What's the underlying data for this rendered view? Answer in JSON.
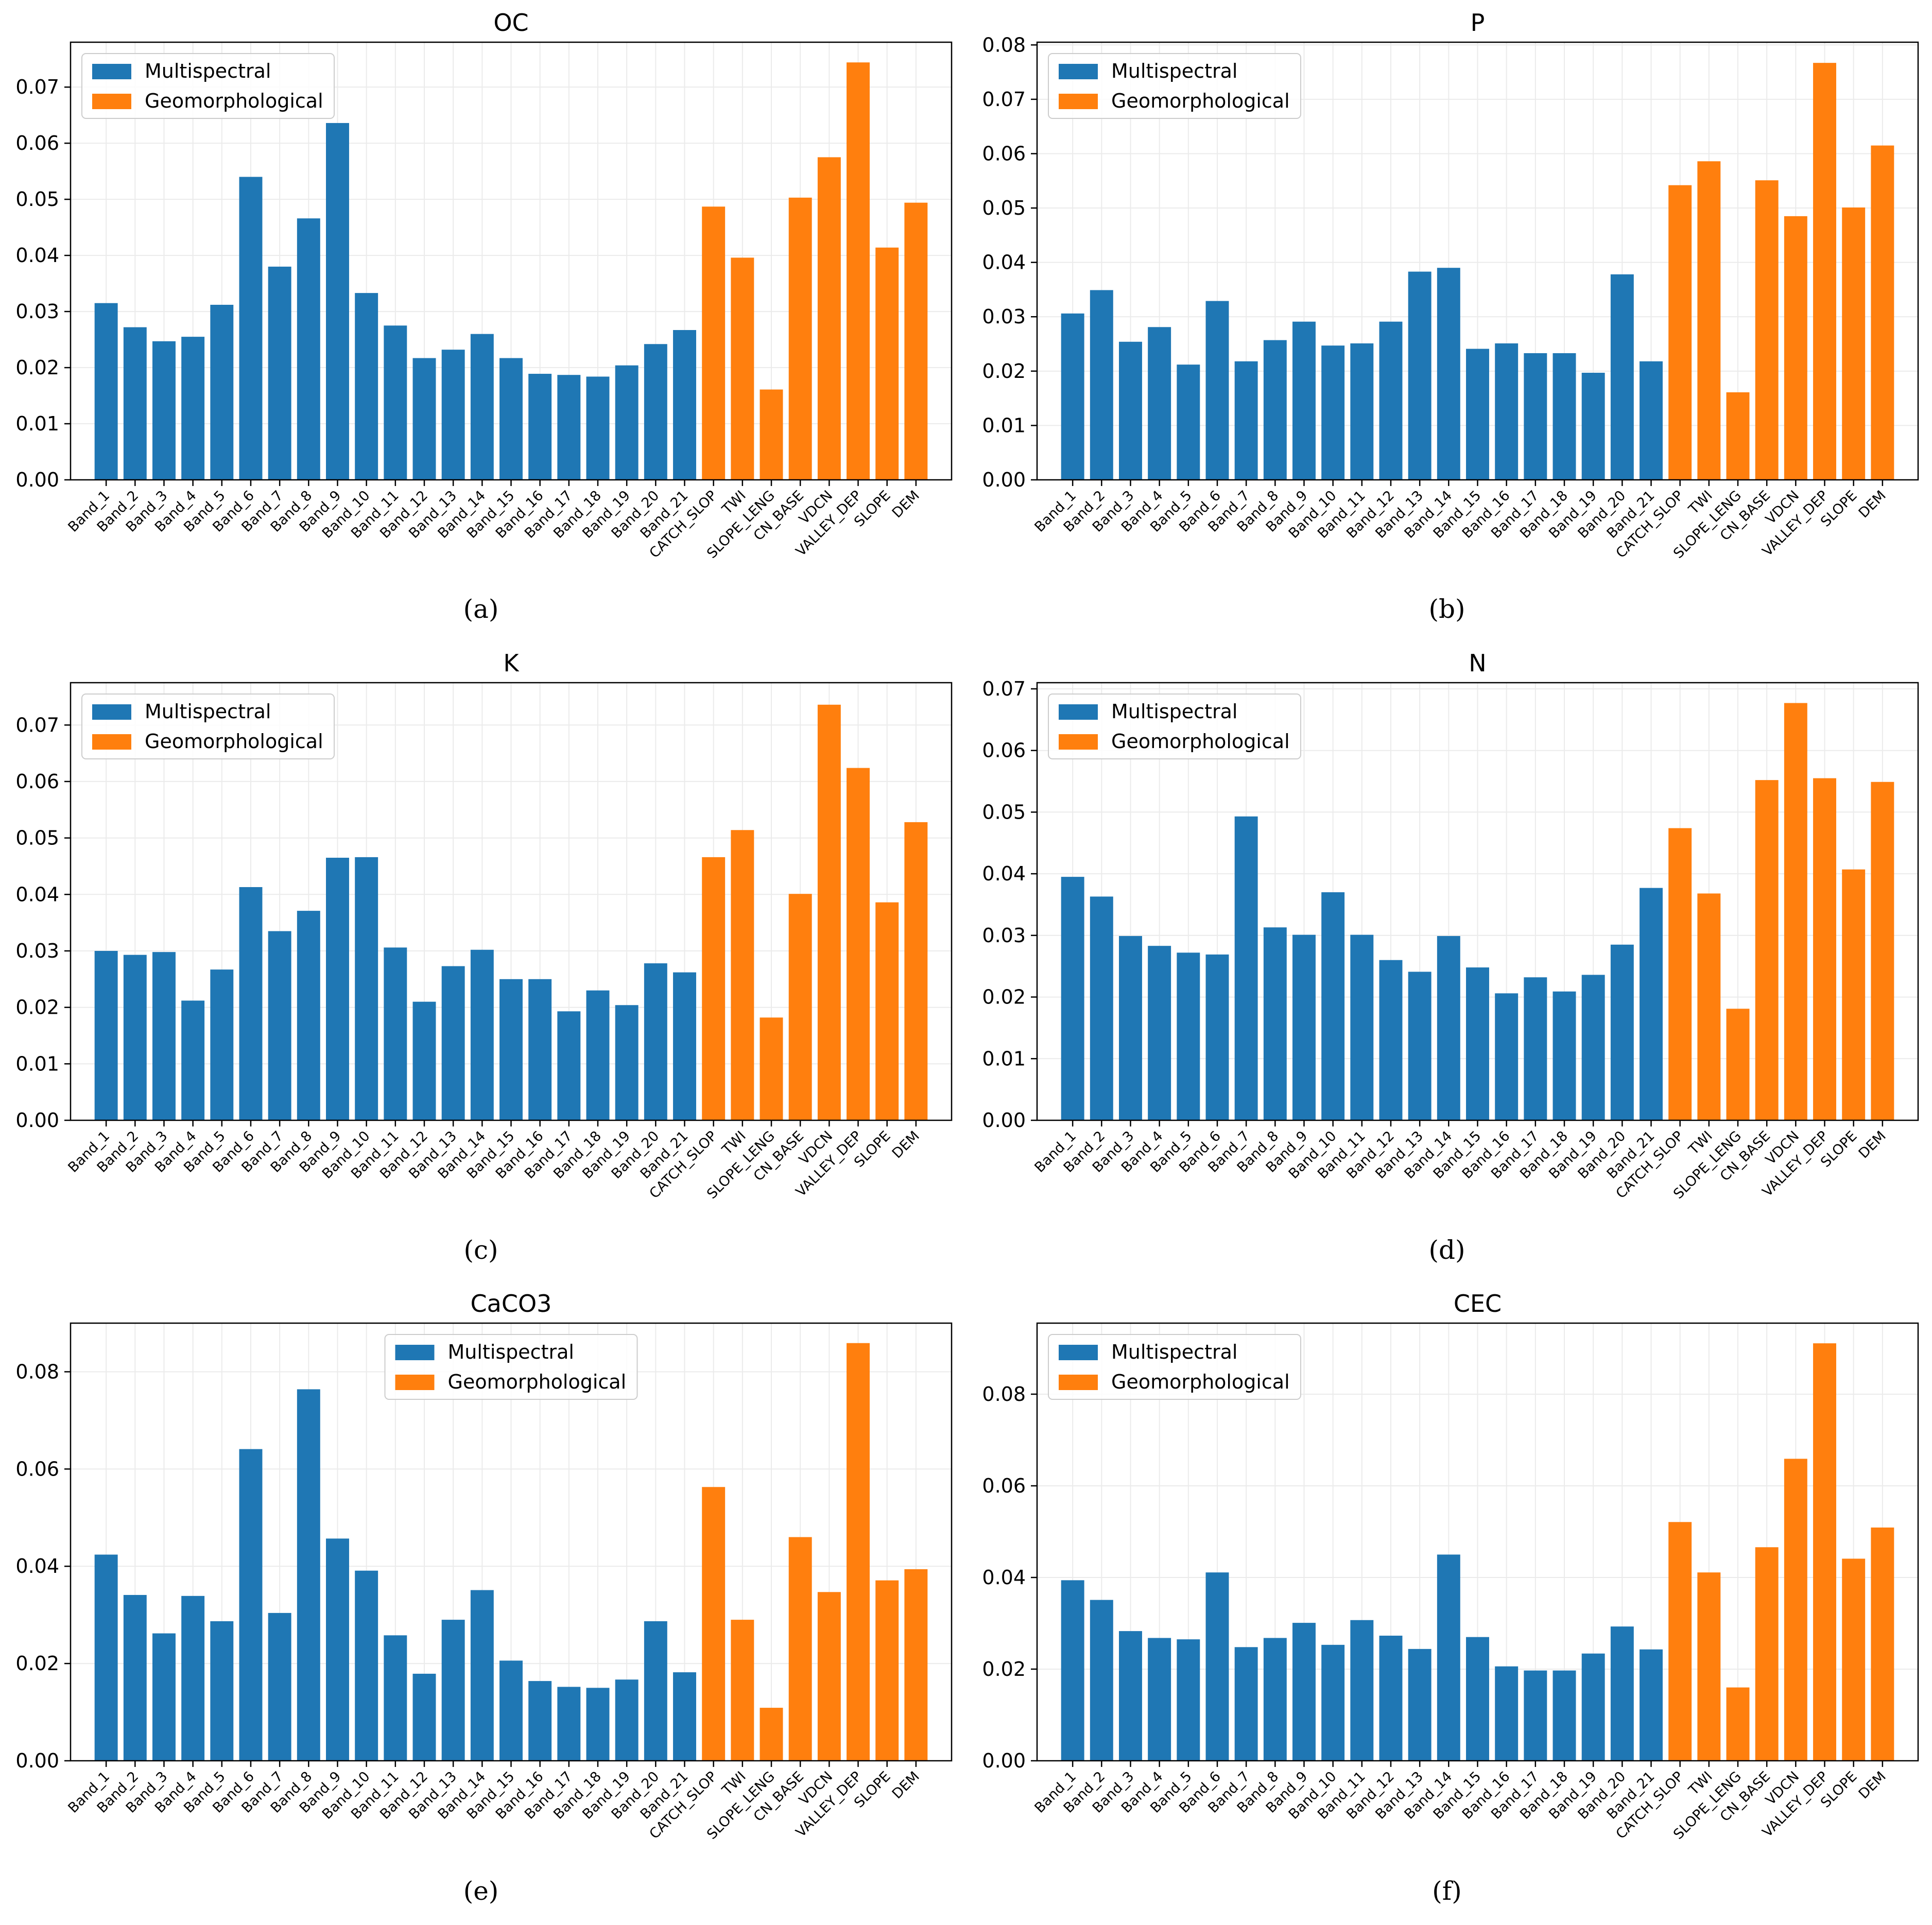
{
  "categories": [
    "Band_1",
    "Band_2",
    "Band_3",
    "Band_4",
    "Band_5",
    "Band_6",
    "Band_7",
    "Band_8",
    "Band_9",
    "Band_10",
    "Band_11",
    "Band_12",
    "Band_13",
    "Band_14",
    "Band_15",
    "Band_16",
    "Band_17",
    "Band_18",
    "Band_19",
    "Band_20",
    "Band_21",
    "CATCH_SLOP",
    "TWI",
    "SLOPE_LENG",
    "CN_BASE",
    "VDCN",
    "VALLEY_DEP",
    "SLOPE",
    "DEM"
  ],
  "colors": {
    "multispectral": "#1f77b4",
    "geomorphological": "#ff7f0e"
  },
  "chart_data": [
    {
      "type": "bar",
      "title": "OC",
      "caption": "(a)",
      "legend": [
        "Multispectral",
        "Geomorphological"
      ],
      "legend_position": "top-left",
      "ylim": [
        0,
        0.078
      ],
      "yticks": [
        0.0,
        0.01,
        0.02,
        0.03,
        0.04,
        0.05,
        0.06,
        0.07
      ],
      "ytick_labels": [
        "0.00",
        "0.01",
        "0.02",
        "0.03",
        "0.04",
        "0.05",
        "0.06",
        "0.07"
      ],
      "grid": true,
      "series": [
        {
          "name": "Multispectral",
          "values": [
            0.0315,
            0.0272,
            0.0247,
            0.0255,
            0.0312,
            0.054,
            0.038,
            0.0466,
            0.0636,
            0.0333,
            0.0275,
            0.0217,
            0.0232,
            0.026,
            0.0217,
            0.0189,
            0.0187,
            0.0184,
            0.0204,
            0.0242,
            0.0267
          ]
        },
        {
          "name": "Geomorphological",
          "values": [
            0.0487,
            0.0396,
            0.0161,
            0.0503,
            0.0575,
            0.0744,
            0.0414,
            0.0494
          ]
        }
      ]
    },
    {
      "type": "bar",
      "title": "P",
      "caption": "(b)",
      "legend": [
        "Multispectral",
        "Geomorphological"
      ],
      "legend_position": "top-left",
      "ylim": [
        0,
        0.0805
      ],
      "yticks": [
        0.0,
        0.01,
        0.02,
        0.03,
        0.04,
        0.05,
        0.06,
        0.07,
        0.08
      ],
      "ytick_labels": [
        "0.00",
        "0.01",
        "0.02",
        "0.03",
        "0.04",
        "0.05",
        "0.06",
        "0.07",
        "0.08"
      ],
      "grid": true,
      "series": [
        {
          "name": "Multispectral",
          "values": [
            0.0306,
            0.0349,
            0.0254,
            0.0281,
            0.0212,
            0.0329,
            0.0218,
            0.0257,
            0.0291,
            0.0247,
            0.0251,
            0.0291,
            0.0383,
            0.039,
            0.0241,
            0.0251,
            0.0233,
            0.0233,
            0.0197,
            0.0378,
            0.0218
          ]
        },
        {
          "name": "Geomorphological",
          "values": [
            0.0542,
            0.0586,
            0.0161,
            0.0551,
            0.0485,
            0.0767,
            0.0501,
            0.0615
          ]
        }
      ]
    },
    {
      "type": "bar",
      "title": "K",
      "caption": "(c)",
      "legend": [
        "Multispectral",
        "Geomorphological"
      ],
      "legend_position": "top-left",
      "ylim": [
        0,
        0.0775
      ],
      "yticks": [
        0.0,
        0.01,
        0.02,
        0.03,
        0.04,
        0.05,
        0.06,
        0.07
      ],
      "ytick_labels": [
        "0.00",
        "0.01",
        "0.02",
        "0.03",
        "0.04",
        "0.05",
        "0.06",
        "0.07"
      ],
      "grid": true,
      "series": [
        {
          "name": "Multispectral",
          "values": [
            0.03,
            0.0293,
            0.0298,
            0.0212,
            0.0267,
            0.0413,
            0.0335,
            0.0371,
            0.0465,
            0.0466,
            0.0306,
            0.021,
            0.0273,
            0.0302,
            0.025,
            0.025,
            0.0193,
            0.023,
            0.0204,
            0.0278,
            0.0262
          ]
        },
        {
          "name": "Geomorphological",
          "values": [
            0.0466,
            0.0514,
            0.0182,
            0.0401,
            0.0736,
            0.0624,
            0.0386,
            0.0528
          ]
        }
      ]
    },
    {
      "type": "bar",
      "title": "N",
      "caption": "(d)",
      "legend": [
        "Multispectral",
        "Geomorphological"
      ],
      "legend_position": "top-left",
      "ylim": [
        0,
        0.071
      ],
      "yticks": [
        0.0,
        0.01,
        0.02,
        0.03,
        0.04,
        0.05,
        0.06,
        0.07
      ],
      "ytick_labels": [
        "0.00",
        "0.01",
        "0.02",
        "0.03",
        "0.04",
        "0.05",
        "0.06",
        "0.07"
      ],
      "grid": true,
      "series": [
        {
          "name": "Multispectral",
          "values": [
            0.0395,
            0.0363,
            0.0299,
            0.0283,
            0.0272,
            0.0269,
            0.0493,
            0.0313,
            0.0301,
            0.037,
            0.0301,
            0.026,
            0.0241,
            0.0299,
            0.0248,
            0.0206,
            0.0232,
            0.0209,
            0.0236,
            0.0285,
            0.0377
          ]
        },
        {
          "name": "Geomorphological",
          "values": [
            0.0474,
            0.0368,
            0.0181,
            0.0552,
            0.0677,
            0.0555,
            0.0407,
            0.0549
          ]
        }
      ]
    },
    {
      "type": "bar",
      "title": "CaCO3",
      "caption": "(e)",
      "legend": [
        "Multispectral",
        "Geomorphological"
      ],
      "legend_position": "top-center",
      "ylim": [
        0,
        0.09
      ],
      "yticks": [
        0.0,
        0.02,
        0.04,
        0.06,
        0.08
      ],
      "ytick_labels": [
        "0.00",
        "0.02",
        "0.04",
        "0.06",
        "0.08"
      ],
      "grid": true,
      "series": [
        {
          "name": "Multispectral",
          "values": [
            0.0424,
            0.0341,
            0.0262,
            0.0339,
            0.0287,
            0.0641,
            0.0304,
            0.0764,
            0.0457,
            0.0391,
            0.0258,
            0.0179,
            0.029,
            0.0351,
            0.0206,
            0.0164,
            0.0152,
            0.015,
            0.0167,
            0.0287,
            0.0182
          ]
        },
        {
          "name": "Geomorphological",
          "values": [
            0.0563,
            0.029,
            0.0109,
            0.046,
            0.0347,
            0.0859,
            0.0371,
            0.0394
          ]
        }
      ]
    },
    {
      "type": "bar",
      "title": "CEC",
      "caption": "(f)",
      "legend": [
        "Multispectral",
        "Geomorphological"
      ],
      "legend_position": "top-left",
      "ylim": [
        0,
        0.0955
      ],
      "yticks": [
        0.0,
        0.02,
        0.04,
        0.06,
        0.08
      ],
      "ytick_labels": [
        "0.00",
        "0.02",
        "0.04",
        "0.06",
        "0.08"
      ],
      "grid": true,
      "series": [
        {
          "name": "Multispectral",
          "values": [
            0.0394,
            0.0351,
            0.0283,
            0.0268,
            0.0265,
            0.0411,
            0.0248,
            0.0268,
            0.0301,
            0.0253,
            0.0307,
            0.0273,
            0.0244,
            0.045,
            0.027,
            0.0206,
            0.0197,
            0.0197,
            0.0234,
            0.0293,
            0.0243
          ]
        },
        {
          "name": "Geomorphological",
          "values": [
            0.0521,
            0.0411,
            0.016,
            0.0466,
            0.0659,
            0.0911,
            0.0441,
            0.0509
          ]
        }
      ]
    }
  ]
}
